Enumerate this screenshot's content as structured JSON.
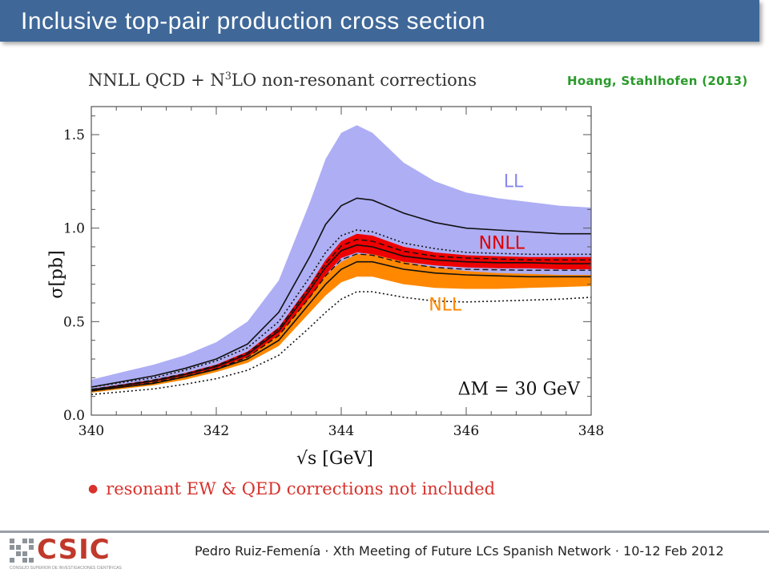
{
  "slide": {
    "title": "Inclusive top-pair production cross section",
    "citation": "Hoang, Stahlhofen (2013)",
    "note": "resonant EW & QED corrections not included",
    "footer": "Pedro Ruiz-Femenía · Xth Meeting of Future LCs Spanish Network · 10-12 Feb 2012",
    "logo": {
      "text": "CSIC",
      "subtext": "CONSEJO SUPERIOR DE INVESTIGACIONES CIENTÍFICAS"
    }
  },
  "chart_data": {
    "type": "area",
    "title": "NNLL QCD + N³LO non-resonant corrections",
    "title_main": "NNLL QCD + N",
    "title_sup": "3",
    "title_rest": "LO non-resonant corrections",
    "xlabel": "√s  [GeV]",
    "ylabel": "σ[pb]",
    "xlim": [
      340,
      348
    ],
    "ylim": [
      0,
      1.65
    ],
    "xticks": [
      340,
      342,
      344,
      346,
      348
    ],
    "yticks": [
      0.0,
      0.5,
      1.0,
      1.5
    ],
    "xtick_labels": [
      "340",
      "342",
      "344",
      "346",
      "348"
    ],
    "ytick_labels": [
      "0.0",
      "0.5",
      "1.0",
      "1.5"
    ],
    "annotation": "ΔM = 30 GeV",
    "colors": {
      "LL": "#aeaef5",
      "NLL": "#ff8800",
      "NNLL": "#ee0000",
      "LL_label": "#8888ee",
      "NNLL_label": "#dd0000",
      "NLL_label": "#ff8800"
    },
    "x": [
      340,
      340.5,
      341,
      341.5,
      342,
      342.5,
      343,
      343.5,
      343.75,
      344,
      344.25,
      344.5,
      345,
      345.5,
      346,
      346.5,
      347,
      347.5,
      348
    ],
    "series": [
      {
        "name": "LL",
        "kind": "band",
        "upper": [
          0.19,
          0.23,
          0.27,
          0.32,
          0.39,
          0.5,
          0.72,
          1.14,
          1.37,
          1.51,
          1.55,
          1.51,
          1.35,
          1.25,
          1.19,
          1.16,
          1.14,
          1.12,
          1.11
        ],
        "central": [
          0.15,
          0.18,
          0.21,
          0.25,
          0.3,
          0.38,
          0.55,
          0.85,
          1.02,
          1.12,
          1.16,
          1.15,
          1.08,
          1.03,
          1.0,
          0.99,
          0.98,
          0.97,
          0.97
        ],
        "lower": [
          0.14,
          0.165,
          0.19,
          0.22,
          0.26,
          0.31,
          0.42,
          0.62,
          0.73,
          0.81,
          0.84,
          0.84,
          0.8,
          0.77,
          0.75,
          0.74,
          0.73,
          0.73,
          0.73
        ]
      },
      {
        "name": "NLL",
        "kind": "band",
        "upper": [
          0.14,
          0.16,
          0.185,
          0.22,
          0.26,
          0.32,
          0.43,
          0.64,
          0.75,
          0.82,
          0.86,
          0.86,
          0.82,
          0.79,
          0.77,
          0.76,
          0.755,
          0.75,
          0.75
        ],
        "central": [
          0.13,
          0.15,
          0.17,
          0.205,
          0.245,
          0.3,
          0.4,
          0.6,
          0.7,
          0.78,
          0.82,
          0.82,
          0.78,
          0.76,
          0.75,
          0.745,
          0.74,
          0.74,
          0.74
        ],
        "lower": [
          0.12,
          0.14,
          0.16,
          0.19,
          0.23,
          0.28,
          0.37,
          0.55,
          0.64,
          0.71,
          0.74,
          0.74,
          0.7,
          0.68,
          0.675,
          0.675,
          0.68,
          0.685,
          0.69
        ]
      },
      {
        "name": "NNLL",
        "kind": "band",
        "upper": [
          0.14,
          0.165,
          0.19,
          0.225,
          0.27,
          0.34,
          0.47,
          0.7,
          0.83,
          0.93,
          0.97,
          0.96,
          0.9,
          0.87,
          0.855,
          0.85,
          0.845,
          0.845,
          0.845
        ],
        "central": [
          0.135,
          0.158,
          0.183,
          0.217,
          0.26,
          0.325,
          0.45,
          0.67,
          0.79,
          0.88,
          0.91,
          0.9,
          0.85,
          0.83,
          0.82,
          0.815,
          0.815,
          0.81,
          0.81
        ],
        "lower": [
          0.13,
          0.152,
          0.177,
          0.21,
          0.25,
          0.31,
          0.43,
          0.63,
          0.75,
          0.84,
          0.87,
          0.86,
          0.82,
          0.8,
          0.79,
          0.785,
          0.785,
          0.78,
          0.78
        ]
      },
      {
        "name": "outer-dotted-upper",
        "kind": "dotted",
        "values": [
          0.15,
          0.175,
          0.2,
          0.24,
          0.29,
          0.36,
          0.5,
          0.74,
          0.87,
          0.96,
          0.99,
          0.98,
          0.92,
          0.89,
          0.87,
          0.865,
          0.86,
          0.86,
          0.86
        ]
      },
      {
        "name": "outer-dotted-lower",
        "kind": "dotted",
        "values": [
          0.11,
          0.125,
          0.14,
          0.165,
          0.195,
          0.24,
          0.32,
          0.47,
          0.55,
          0.62,
          0.66,
          0.66,
          0.63,
          0.61,
          0.605,
          0.61,
          0.615,
          0.62,
          0.63
        ]
      },
      {
        "name": "dashed-1",
        "kind": "dashed",
        "values": [
          0.138,
          0.162,
          0.188,
          0.222,
          0.265,
          0.333,
          0.462,
          0.688,
          0.81,
          0.905,
          0.94,
          0.93,
          0.876,
          0.85,
          0.84,
          0.835,
          0.83,
          0.83,
          0.83
        ]
      },
      {
        "name": "dashed-2",
        "kind": "dashed",
        "values": [
          0.128,
          0.15,
          0.174,
          0.207,
          0.248,
          0.31,
          0.425,
          0.632,
          0.745,
          0.832,
          0.862,
          0.855,
          0.812,
          0.79,
          0.78,
          0.777,
          0.775,
          0.775,
          0.775
        ]
      }
    ],
    "labels": [
      {
        "text": "LL",
        "x": 346.6,
        "y": 1.22
      },
      {
        "text": "NNLL",
        "x": 346.2,
        "y": 0.89
      },
      {
        "text": "NLL",
        "x": 345.4,
        "y": 0.56
      }
    ]
  }
}
